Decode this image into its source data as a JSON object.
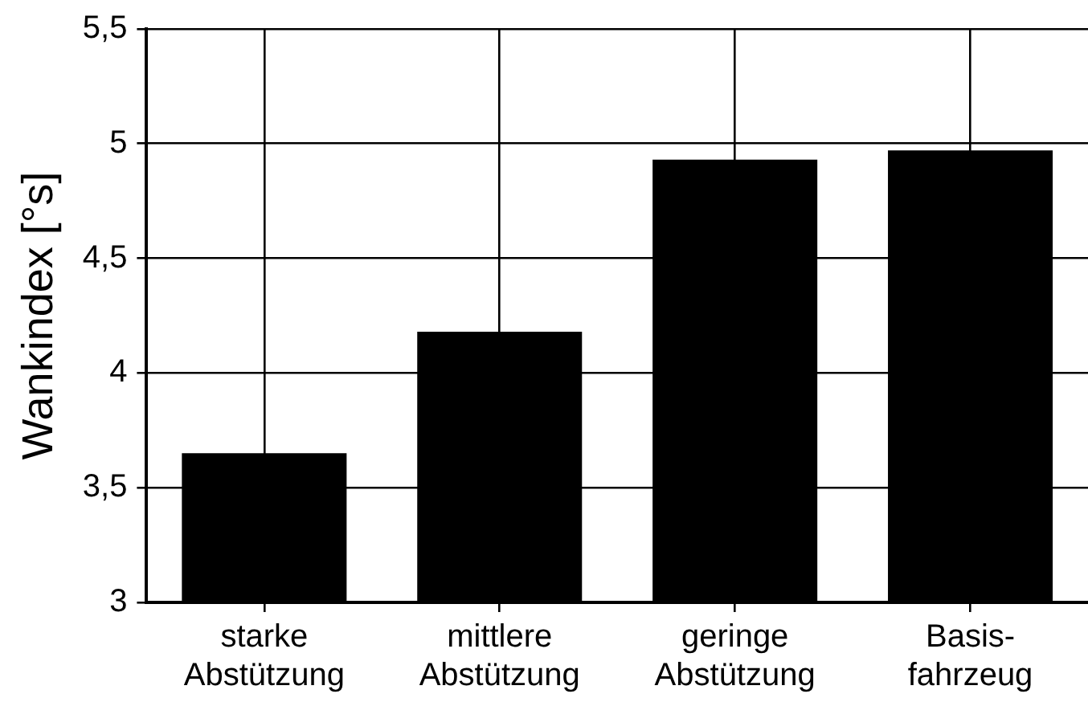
{
  "chart_data": {
    "type": "bar",
    "ylabel": "Wankindex [°s]",
    "categories": [
      "starke\nAbstützung",
      "mittlere\nAbstützung",
      "geringe\nAbstützung",
      "Basis-\nfahrzeug"
    ],
    "values": [
      3.65,
      4.18,
      4.93,
      4.97
    ],
    "color": "#000000",
    "ylim": [
      3,
      5.5
    ],
    "yticks": [
      3,
      {
        "value": 3.5,
        "label": "3,5"
      },
      4,
      {
        "value": 4.5,
        "label": "4,5"
      },
      5,
      {
        "value": 5.5,
        "label": "5,5"
      }
    ],
    "grid": true,
    "legend": false
  }
}
